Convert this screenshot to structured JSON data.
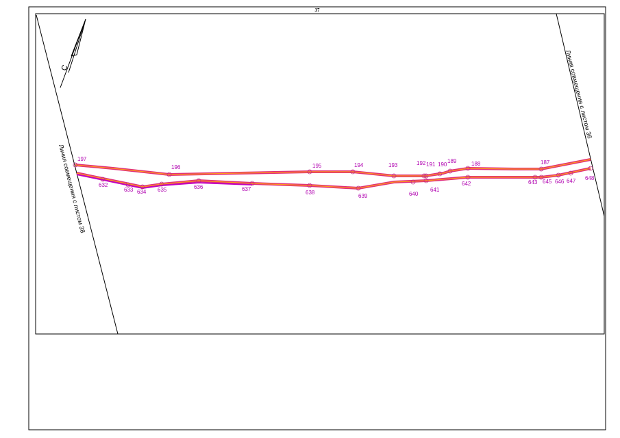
{
  "sheet_number": "37",
  "north_label": "С",
  "left_note": "Линия совмещения с листом 38",
  "right_note": "Линия совмещения с листом 36",
  "upper_points": [
    "197",
    "196",
    "195",
    "194",
    "193",
    "192",
    "191",
    "190",
    "189",
    "188",
    "187"
  ],
  "lower_points": [
    "632",
    "633",
    "634",
    "635",
    "636",
    "637",
    "638",
    "639",
    "640",
    "641",
    "642",
    "643",
    "645",
    "646",
    "647",
    "648"
  ]
}
